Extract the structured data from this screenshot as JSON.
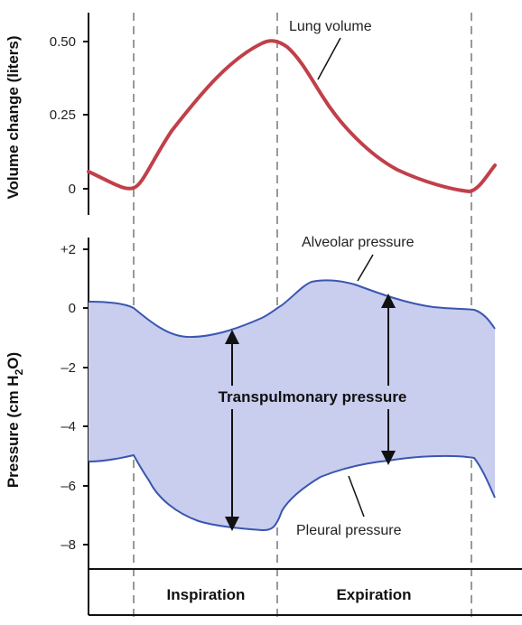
{
  "chart_data": [
    {
      "type": "line",
      "ylabel": "Volume change (liters)",
      "yticks": [
        "0.50",
        "0.25",
        "0"
      ],
      "ylim": [
        -0.05,
        0.6
      ],
      "series": [
        {
          "name": "Lung volume",
          "color": "#c0404a",
          "x": [
            0,
            0.5,
            1,
            1.3,
            1.8,
            2.2,
            2.5,
            2.9,
            3.3,
            3.8,
            4.6,
            5.0
          ],
          "values": [
            0.05,
            0.0,
            0.0,
            0.15,
            0.38,
            0.49,
            0.5,
            0.4,
            0.2,
            0.08,
            0.0,
            0.08
          ]
        }
      ]
    },
    {
      "type": "area",
      "ylabel_main": "Pressure (cm H",
      "ylabel_sub": "2",
      "ylabel_end": "O)",
      "yticks": [
        "+2",
        "0",
        "–2",
        "–4",
        "–6",
        "–8"
      ],
      "ylim": [
        -8.8,
        2.5
      ],
      "series": [
        {
          "name": "Alveolar pressure",
          "color": "#3a56b0",
          "x": [
            0,
            0.5,
            1,
            1.5,
            2.0,
            2.5,
            3.0,
            3.5,
            4.0,
            4.6,
            5.0
          ],
          "values": [
            0.3,
            0.2,
            -0.9,
            -0.5,
            0.0,
            0.0,
            1.0,
            0.4,
            0.1,
            0.0,
            -0.6
          ]
        },
        {
          "name": "Pleural pressure",
          "color": "#3a56b0",
          "x": [
            0,
            0.5,
            1,
            1.5,
            2.0,
            2.5,
            3.0,
            3.5,
            4.0,
            4.6,
            5.0
          ],
          "values": [
            -5.2,
            -4.9,
            -6.8,
            -7.4,
            -7.5,
            -7.5,
            -6.2,
            -5.5,
            -5.2,
            -4.9,
            -6.4
          ]
        }
      ],
      "fill_color": "#c9cdee",
      "center_label": "Transpulmonary pressure"
    }
  ],
  "phases": [
    "Inspiration",
    "Expiration"
  ]
}
